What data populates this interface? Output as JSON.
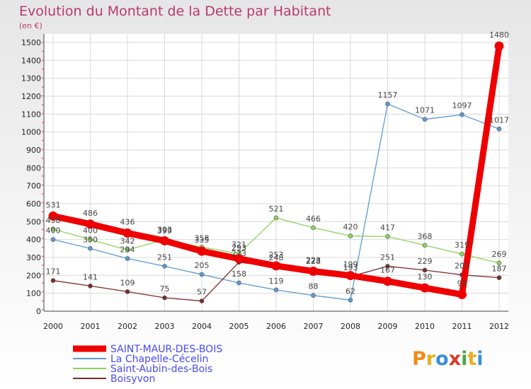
{
  "title": "Evolution du Montant de la Dette par Habitant",
  "unit": "(en €)",
  "logo": {
    "letters": [
      "P",
      "r",
      "o",
      "x",
      "i",
      "t",
      "i"
    ],
    "colors": [
      "#f08a18",
      "#e8b020",
      "#3a8fd8",
      "#d83a2a",
      "#48a848",
      "#e8b020",
      "#3a8fd8"
    ]
  },
  "chart_data": {
    "type": "line",
    "x": [
      2000,
      2001,
      2002,
      2003,
      2004,
      2005,
      2006,
      2007,
      2008,
      2009,
      2010,
      2011,
      2012
    ],
    "ylim": [
      0,
      1500
    ],
    "yticks": [
      0,
      100,
      200,
      300,
      400,
      500,
      600,
      700,
      800,
      900,
      1000,
      1100,
      1200,
      1300,
      1400,
      1500
    ],
    "grid": true,
    "legend_position": "bottom-left",
    "series": [
      {
        "name": "SAINT-MAUR-DES-BOIS",
        "color": "#ee0000",
        "values": [
          531,
          486,
          436,
          393,
          335,
          293,
          253,
          223,
          199,
          167,
          130,
          93,
          1480
        ]
      },
      {
        "name": "La Chapelle-Cécelin",
        "color": "#5b9bd5",
        "values": [
          400,
          350,
          294,
          251,
          205,
          158,
          119,
          88,
          62,
          1157,
          1071,
          1097,
          1017
        ]
      },
      {
        "name": "Saint-Aubin-des-Bois",
        "color": "#8cd45c",
        "values": [
          458,
          400,
          342,
          399,
          358,
          321,
          521,
          466,
          420,
          417,
          368,
          319,
          269
        ]
      },
      {
        "name": "Boisyvon",
        "color": "#7a2a2a",
        "values": [
          171,
          141,
          109,
          75,
          57,
          273,
          248,
          228,
          193,
          251,
          229,
          203,
          187
        ]
      }
    ]
  }
}
